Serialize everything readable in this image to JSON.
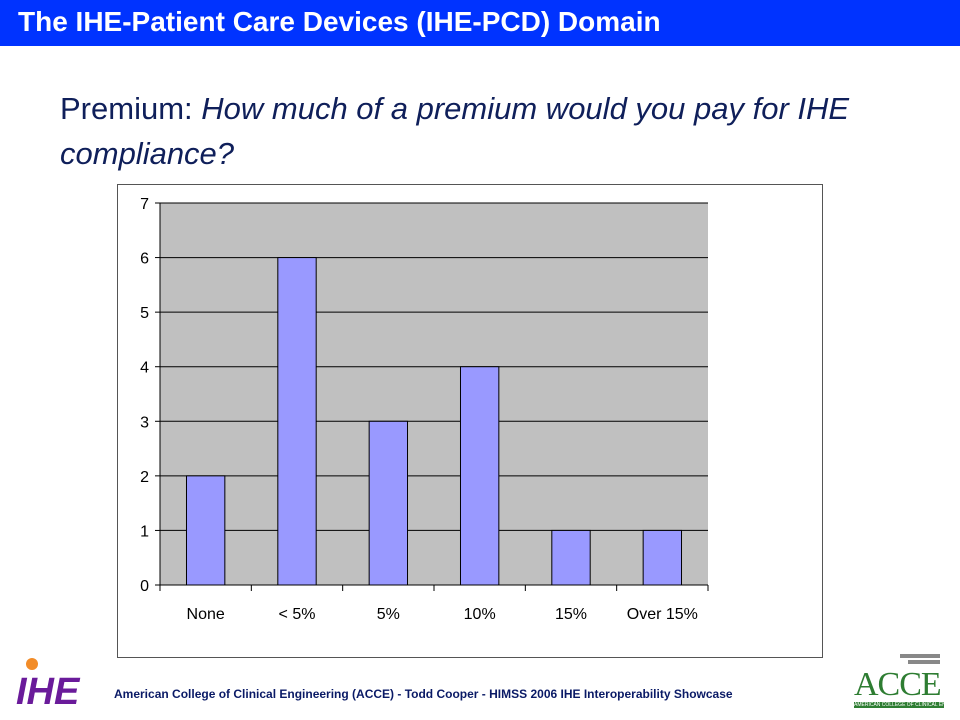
{
  "slide": {
    "title": "The IHE-Patient Care Devices (IHE-PCD) Domain",
    "heading_label": "Premium: ",
    "heading_question": "How much of a premium would you pay for IHE compliance?",
    "footer": "American College of Clinical Engineering (ACCE)  - Todd Cooper  - HIMSS 2006 IHE Interoperability Showcase",
    "ihe_logo_text": "IHE",
    "acce_logo_text": "ACCE",
    "acce_logo_subtext": "AMERICAN COLLEGE OF CLINICAL ENGINEERING",
    "colors": {
      "title_bar": "#0033ff",
      "heading_text": "#0f1f5a",
      "bar_fill": "#9999ff",
      "plot_background": "#c0c0c0"
    }
  },
  "chart_data": {
    "type": "bar",
    "categories": [
      "None",
      "< 5%",
      "5%",
      "10%",
      "15%",
      "Over 15%"
    ],
    "values": [
      2,
      6,
      3,
      4,
      1,
      1
    ],
    "title": "",
    "xlabel": "",
    "ylabel": "",
    "ylim": [
      0,
      7
    ],
    "yticks": [
      0,
      1,
      2,
      3,
      4,
      5,
      6,
      7
    ],
    "grid": true,
    "legend": "none"
  }
}
